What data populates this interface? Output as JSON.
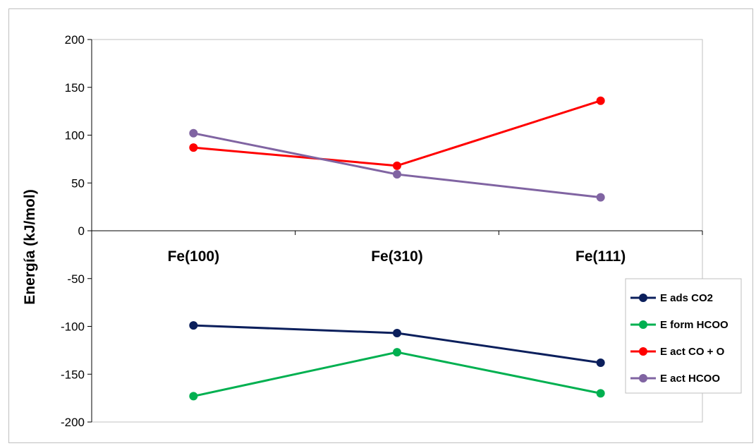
{
  "chart_data": {
    "type": "line",
    "categories": [
      "Fe(100)",
      "Fe(310)",
      "Fe(111)"
    ],
    "ylabel": "Energía (kJ/mol)",
    "xlabel": "",
    "title": "",
    "ylim": [
      -200,
      200
    ],
    "yticks": [
      200,
      150,
      100,
      50,
      0,
      -50,
      -100,
      -150,
      -200
    ],
    "grid": false,
    "legend_position": "right",
    "series": [
      {
        "name": "E ads CO2",
        "color": "#0b1f5c",
        "values": [
          -99,
          -107,
          -138
        ]
      },
      {
        "name": "E form HCOO",
        "color": "#00b050",
        "values": [
          -173,
          -127,
          -170
        ]
      },
      {
        "name": "E act CO + O",
        "color": "#ff0000",
        "values": [
          87,
          68,
          136
        ]
      },
      {
        "name": "E act HCOO",
        "color": "#8064a2",
        "values": [
          102,
          59,
          35
        ]
      }
    ]
  }
}
